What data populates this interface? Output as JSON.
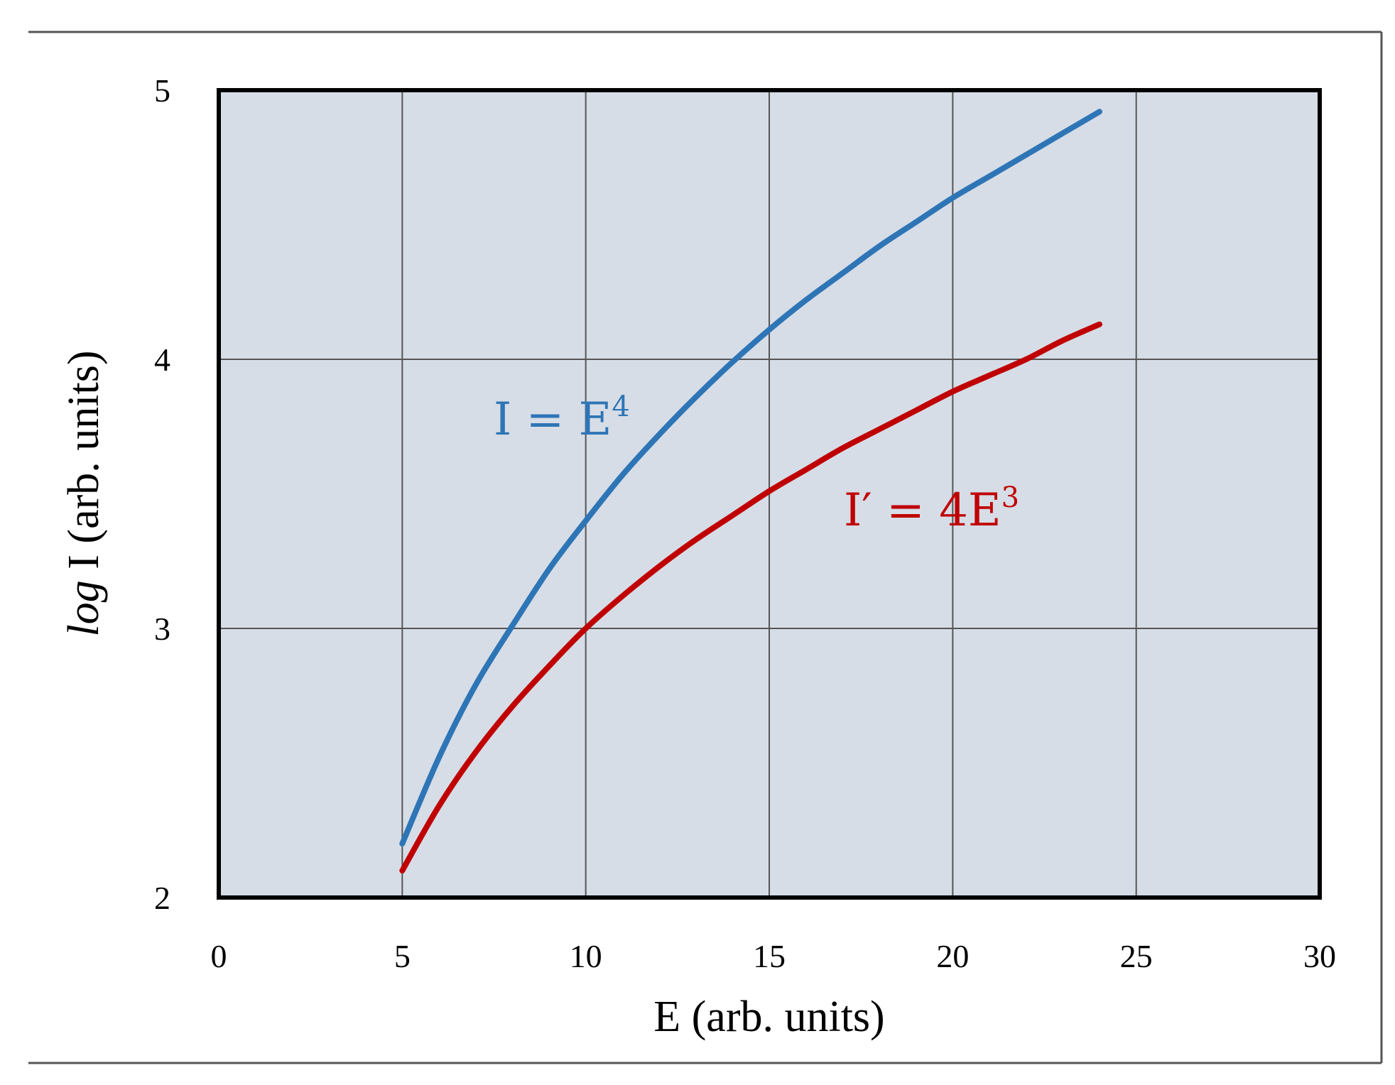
{
  "chart_data": {
    "type": "line",
    "title": "",
    "xlabel": "E (arb. units)",
    "ylabel_italic": "log",
    "ylabel_rest": " I (arb. units)",
    "xlim": [
      0,
      30
    ],
    "ylim": [
      2,
      5
    ],
    "x_ticks": [
      0,
      5,
      10,
      15,
      20,
      25,
      30
    ],
    "y_ticks": [
      2,
      3,
      4,
      5
    ],
    "grid": true,
    "plot_background": "#D6DDE7",
    "series": [
      {
        "formula": "I = E^4",
        "color": "#2E75B6",
        "label_main": "I = E",
        "label_sup": "4",
        "x": [
          5,
          6,
          7,
          8,
          9,
          10,
          11,
          12,
          13,
          14,
          15,
          16,
          17,
          18,
          19,
          20,
          21,
          22,
          23,
          24
        ],
        "y": [
          2.2,
          2.52,
          2.79,
          3.01,
          3.22,
          3.4,
          3.57,
          3.72,
          3.86,
          3.99,
          4.11,
          4.22,
          4.32,
          4.42,
          4.51,
          4.6,
          4.68,
          4.76,
          4.84,
          4.92
        ]
      },
      {
        "formula": "I' = 4E^3",
        "color": "#C00000",
        "label_main": "I′ = 4E",
        "label_sup": "3",
        "x": [
          5,
          6,
          7,
          8,
          9,
          10,
          11,
          12,
          13,
          14,
          15,
          16,
          17,
          18,
          19,
          20,
          21,
          22,
          23,
          24
        ],
        "y": [
          2.1,
          2.34,
          2.54,
          2.71,
          2.86,
          3.0,
          3.12,
          3.23,
          3.33,
          3.42,
          3.51,
          3.59,
          3.67,
          3.74,
          3.81,
          3.88,
          3.94,
          4.0,
          4.07,
          4.13
        ]
      }
    ]
  }
}
